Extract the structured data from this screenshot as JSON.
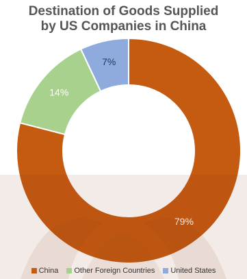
{
  "chart_data": {
    "type": "pie",
    "variant": "donut",
    "title": "Destination of Goods Supplied\nby US Companies in China",
    "categories": [
      "China",
      "Other Foreign Countries",
      "United States"
    ],
    "values": [
      79,
      14,
      7
    ],
    "data_labels": [
      "79%",
      "14%",
      "7%"
    ],
    "colors": [
      "#c55a11",
      "#a9d18e",
      "#8faadc"
    ],
    "label_colors": [
      "#ffffff",
      "#ffffff",
      "#1f3864"
    ],
    "legend_position": "bottom"
  },
  "watermark": {
    "color": "#8b3a14"
  }
}
